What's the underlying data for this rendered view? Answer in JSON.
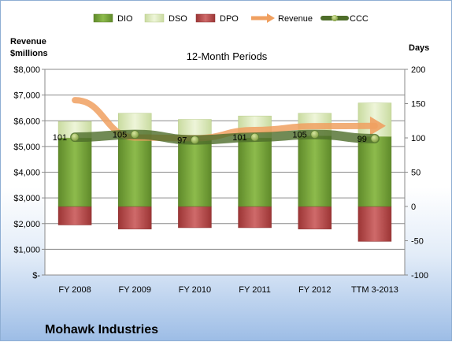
{
  "chart_data": {
    "type": "bar",
    "subtitle": "12-Month Periods",
    "company": "Mohawk Industries",
    "left_axis": {
      "title_line1": "Revenue",
      "title_line2": "$millions",
      "min": 0,
      "max": 8000,
      "step": 1000,
      "tick_labels": [
        "$-",
        "$1,000",
        "$2,000",
        "$3,000",
        "$4,000",
        "$5,000",
        "$6,000",
        "$7,000",
        "$8,000"
      ]
    },
    "right_axis": {
      "title": "Days",
      "min": -100,
      "max": 200,
      "step": 50,
      "tick_labels": [
        "-100",
        "-50",
        "0",
        "50",
        "100",
        "150",
        "200"
      ]
    },
    "categories": [
      "FY 2008",
      "FY 2009",
      "FY 2010",
      "FY 2011",
      "FY 2012",
      "TTM 3-2013"
    ],
    "series": [
      {
        "name": "DIO",
        "axis": "right",
        "kind": "stacked-bar",
        "color": "#77a33a",
        "values": [
          100,
          105,
          98,
          100,
          103,
          102
        ]
      },
      {
        "name": "DSO",
        "axis": "right",
        "kind": "stacked-bar",
        "color": "#d7e4b4",
        "values": [
          24,
          31,
          29,
          32,
          33,
          49
        ]
      },
      {
        "name": "DPO",
        "axis": "right",
        "kind": "negative-bar",
        "color": "#b84a4a",
        "values": [
          -27,
          -33,
          -31,
          -31,
          -33,
          -51
        ]
      },
      {
        "name": "Revenue",
        "axis": "left",
        "kind": "arrow-line",
        "color": "#f0a060",
        "values": [
          6800,
          5350,
          5320,
          5640,
          5790,
          5800
        ]
      },
      {
        "name": "CCC",
        "axis": "right",
        "kind": "line",
        "color": "#5e7f33",
        "values": [
          101,
          105,
          97,
          101,
          105,
          99
        ]
      }
    ],
    "ccc_labels": [
      "101",
      "105",
      "97",
      "101",
      "105",
      "99"
    ],
    "legend": [
      "DIO",
      "DSO",
      "DPO",
      "Revenue",
      "CCC"
    ],
    "legend_position": "top",
    "grid": true
  }
}
